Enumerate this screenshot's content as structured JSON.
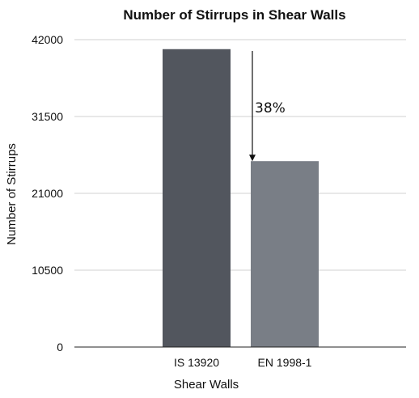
{
  "chart_data": {
    "type": "bar",
    "title": "Number of Stirrups in Shear Walls",
    "xlabel": "Shear Walls",
    "ylabel": "Number of Stirrups",
    "categories": [
      "IS 13920",
      "EN 1998-1"
    ],
    "values": [
      40700,
      25400
    ],
    "bar_colors": [
      "#52565e",
      "#797e86"
    ],
    "ylim": [
      0,
      42000
    ],
    "yticks": [
      "0",
      "10500",
      "21000",
      "31500",
      "42000"
    ],
    "grid": true,
    "legend": "none",
    "annotation": {
      "text": "38%",
      "type": "arrow",
      "from_value": 40700,
      "to_value": 25400
    }
  }
}
